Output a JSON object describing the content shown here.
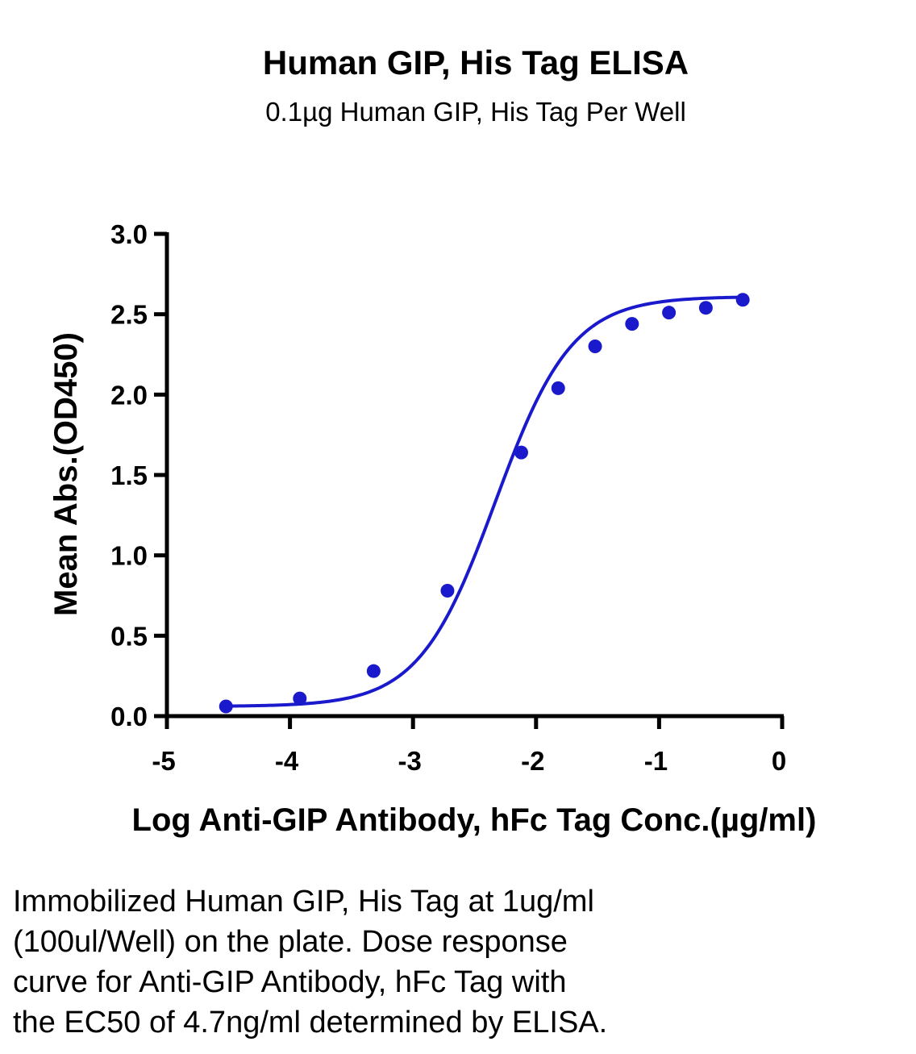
{
  "chart_data": {
    "type": "scatter",
    "title": "Human GIP, His Tag ELISA",
    "subtitle": "0.1µg Human GIP, His Tag Per Well",
    "xlabel": "Log Anti-GIP Antibody, hFc Tag Conc.(µg/ml)",
    "ylabel": "Mean Abs.(OD450)",
    "xlim": [
      -5,
      0
    ],
    "ylim": [
      0,
      3.0
    ],
    "xticks": [
      "-5",
      "-4",
      "-3",
      "-2",
      "-1",
      "0"
    ],
    "yticks": [
      "0.0",
      "0.5",
      "1.0",
      "1.5",
      "2.0",
      "2.5",
      "3.0"
    ],
    "series_color": "#1a1acc",
    "curve_fit": {
      "model": "4PL",
      "bottom": 0.06,
      "top": 2.61,
      "log_ec50": -2.33,
      "hill": 1.4
    },
    "points": [
      {
        "x": -4.52,
        "y": 0.06
      },
      {
        "x": -3.92,
        "y": 0.11
      },
      {
        "x": -3.32,
        "y": 0.28
      },
      {
        "x": -2.72,
        "y": 0.78
      },
      {
        "x": -2.12,
        "y": 1.64
      },
      {
        "x": -1.82,
        "y": 2.04
      },
      {
        "x": -1.52,
        "y": 2.3
      },
      {
        "x": -1.22,
        "y": 2.44
      },
      {
        "x": -0.92,
        "y": 2.51
      },
      {
        "x": -0.62,
        "y": 2.54
      },
      {
        "x": -0.32,
        "y": 2.59
      }
    ]
  },
  "caption": [
    "Immobilized Human GIP, His Tag at 1ug/ml",
    "(100ul/Well) on the plate. Dose response",
    "curve for Anti-GIP Antibody, hFc Tag with",
    "the EC50 of 4.7ng/ml determined by ELISA."
  ]
}
